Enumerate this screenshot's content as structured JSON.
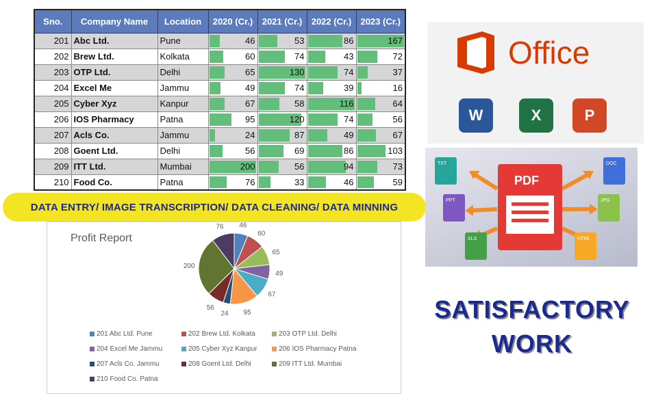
{
  "table": {
    "headers": [
      "Sno.",
      "Company Name",
      "Location",
      "2020 (Cr.)",
      "2021 (Cr.)",
      "2022 (Cr.)",
      "2023 (Cr.)"
    ],
    "rows": [
      {
        "sno": "201",
        "company": "Abc Ltd.",
        "location": "Pune",
        "y2020": 46,
        "y2021": 53,
        "y2022": 86,
        "y2023": 167
      },
      {
        "sno": "202",
        "company": "Brew Ltd.",
        "location": "Kolkata",
        "y2020": 60,
        "y2021": 74,
        "y2022": 43,
        "y2023": 72
      },
      {
        "sno": "203",
        "company": "OTP Ltd.",
        "location": "Delhi",
        "y2020": 65,
        "y2021": 130,
        "y2022": 74,
        "y2023": 37
      },
      {
        "sno": "204",
        "company": "Excel Me",
        "location": "Jammu",
        "y2020": 49,
        "y2021": 74,
        "y2022": 39,
        "y2023": 16
      },
      {
        "sno": "205",
        "company": "Cyber Xyz",
        "location": "Kanpur",
        "y2020": 67,
        "y2021": 58,
        "y2022": 116,
        "y2023": 64
      },
      {
        "sno": "206",
        "company": "IOS Pharmacy",
        "location": "Patna",
        "y2020": 95,
        "y2021": 120,
        "y2022": 74,
        "y2023": 56
      },
      {
        "sno": "207",
        "company": "Acls Co.",
        "location": "Jammu",
        "y2020": 24,
        "y2021": 87,
        "y2022": 49,
        "y2023": 67
      },
      {
        "sno": "208",
        "company": "Goent Ltd.",
        "location": "Delhi",
        "y2020": 56,
        "y2021": 69,
        "y2022": 86,
        "y2023": 103
      },
      {
        "sno": "209",
        "company": "ITT Ltd.",
        "location": "Mumbai",
        "y2020": 200,
        "y2021": 56,
        "y2022": 94,
        "y2023": 73
      },
      {
        "sno": "210",
        "company": "Food Co.",
        "location": "Patna",
        "y2020": 76,
        "y2021": 33,
        "y2022": 46,
        "y2023": 59
      }
    ],
    "bar_color": "#63be7b",
    "header_color": "#5b7bbd"
  },
  "banner": {
    "text": "DATA ENTRY/ IMAGE TRANSCRIPTION/ DATA CLEANING/ DATA MINNING",
    "bg_color": "#f3e524",
    "text_color": "#1d2a8a"
  },
  "chart_data": {
    "type": "pie",
    "title": "Profit Report",
    "values": [
      46,
      60,
      65,
      49,
      67,
      95,
      24,
      56,
      200,
      76
    ],
    "labels": [
      "201 Abc Ltd. Pune",
      "202 Brew Ltd. Kolkata",
      "203 OTP Ltd. Delhi",
      "204 Excel Me Jammu",
      "205 Cyber Xyz Kanpur",
      "206 IOS Pharmacy Patna",
      "207 Acls Co. Jammu",
      "208 Goent Ltd. Delhi",
      "209 ITT Ltd. Mumbai",
      "210 Food Co. Patna"
    ],
    "colors": [
      "#4f81bd",
      "#c0504d",
      "#9bbb59",
      "#8064a2",
      "#4bacc6",
      "#f79646",
      "#2c4d75",
      "#772c2a",
      "#5f7530",
      "#4d3b62"
    ],
    "legend_position": "bottom"
  },
  "office": {
    "wordmark": "Office",
    "brand_color": "#d83b01",
    "icons": [
      {
        "name": "word-icon",
        "letter": "W",
        "color": "#2b579a"
      },
      {
        "name": "excel-icon",
        "letter": "X",
        "color": "#217346"
      },
      {
        "name": "powerpoint-icon",
        "letter": "P",
        "color": "#d24726"
      }
    ]
  },
  "pdf": {
    "center_label": "PDF",
    "formats": [
      "TXT",
      "DOC",
      "PPT",
      "JPG",
      "XLS",
      "HTML"
    ]
  },
  "satisfactory": {
    "line1": "SATISFACTORY",
    "line2": "WORK"
  }
}
